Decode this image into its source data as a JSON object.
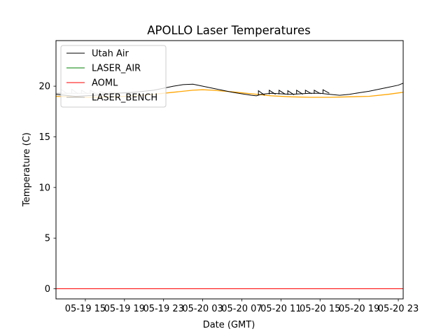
{
  "chart_data": {
    "type": "line",
    "title": "APOLLO Laser Temperatures",
    "xlabel": "Date (GMT)",
    "ylabel": "Temperature (C)",
    "x_units": "hours since 2018-05-19 12:00 GMT",
    "xlim": [
      0,
      35.5
    ],
    "ylim": [
      -1,
      24.5
    ],
    "x_ticks": [
      {
        "value": 3,
        "label": "05-19 15"
      },
      {
        "value": 7,
        "label": "05-19 19"
      },
      {
        "value": 11,
        "label": "05-19 23"
      },
      {
        "value": 15,
        "label": "05-20 03"
      },
      {
        "value": 19,
        "label": "05-20 07"
      },
      {
        "value": 23,
        "label": "05-20 11"
      },
      {
        "value": 27,
        "label": "05-20 15"
      },
      {
        "value": 31,
        "label": "05-20 19"
      },
      {
        "value": 35,
        "label": "05-20 23"
      }
    ],
    "y_ticks": [
      0,
      5,
      10,
      15,
      20
    ],
    "legend_position": "top-left",
    "series": [
      {
        "name": "Utah Air",
        "color": "#000000",
        "x": [
          0,
          2,
          4,
          6,
          8,
          10,
          12,
          13,
          14,
          15,
          16,
          17,
          18,
          19,
          20,
          20.5,
          21,
          22,
          23,
          24,
          25,
          26,
          27,
          28,
          29,
          30,
          31,
          32,
          33,
          34,
          35,
          35.5
        ],
        "y": [
          19.2,
          19.0,
          19.1,
          19.3,
          19.4,
          19.6,
          20.0,
          20.15,
          20.2,
          20.0,
          19.8,
          19.6,
          19.4,
          19.25,
          19.1,
          19.05,
          19.2,
          19.3,
          19.25,
          19.2,
          19.25,
          19.3,
          19.3,
          19.2,
          19.1,
          19.2,
          19.35,
          19.5,
          19.7,
          19.9,
          20.1,
          20.3
        ],
        "spikes": [
          {
            "x": 20.7,
            "peak": 19.55,
            "base": 19.1
          },
          {
            "x": 21.8,
            "peak": 19.6,
            "base": 19.2
          },
          {
            "x": 22.8,
            "peak": 19.6,
            "base": 19.2
          },
          {
            "x": 23.7,
            "peak": 19.55,
            "base": 19.15
          },
          {
            "x": 24.6,
            "peak": 19.6,
            "base": 19.2
          },
          {
            "x": 25.5,
            "peak": 19.6,
            "base": 19.25
          },
          {
            "x": 26.4,
            "peak": 19.6,
            "base": 19.25
          },
          {
            "x": 27.3,
            "peak": 19.65,
            "base": 19.3
          }
        ]
      },
      {
        "name": "LASER_AIR",
        "color": "#008000",
        "x": [],
        "y": []
      },
      {
        "name": "AOML",
        "color": "#ff0000",
        "x": [
          0,
          35.5
        ],
        "y": [
          0,
          0
        ]
      },
      {
        "name": "LASER_BENCH",
        "color": "#b0b0b0",
        "x": [
          0,
          2,
          4,
          6,
          8
        ],
        "y": [
          19.3,
          19.3,
          19.3,
          19.3,
          19.3
        ],
        "spikes": [
          {
            "x": 0.5,
            "peak": 19.7,
            "base": 19.25
          },
          {
            "x": 1.6,
            "peak": 19.7,
            "base": 19.25
          },
          {
            "x": 2.6,
            "peak": 19.6,
            "base": 19.25
          },
          {
            "x": 3.5,
            "peak": 19.6,
            "base": 19.25
          },
          {
            "x": 4.5,
            "peak": 19.5,
            "base": 19.3
          },
          {
            "x": 5.5,
            "peak": 19.45,
            "base": 19.3
          }
        ]
      },
      {
        "name": "",
        "color": "#ffa500",
        "x": [
          0,
          3,
          6,
          9,
          12,
          14,
          15,
          16,
          18,
          20,
          22,
          24,
          26,
          28,
          30,
          32,
          34,
          35.5
        ],
        "y": [
          19.0,
          18.9,
          18.95,
          19.1,
          19.4,
          19.6,
          19.65,
          19.6,
          19.45,
          19.25,
          19.05,
          18.95,
          18.9,
          18.9,
          18.95,
          19.0,
          19.2,
          19.4
        ]
      }
    ]
  }
}
